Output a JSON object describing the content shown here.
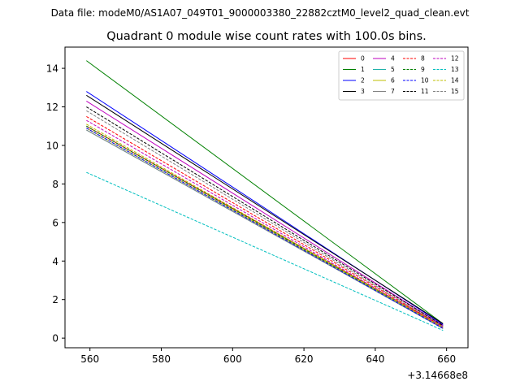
{
  "chart_data": {
    "type": "line",
    "suptitle": "Data file: modeM0/AS1A07_049T01_9000003380_22882cztM0_level2_quad_clean.evt",
    "title": "Quadrant 0 module wise count rates with 100.0s bins.",
    "xlabel": "",
    "ylabel": "",
    "x_offset_label": "+3.14668e8",
    "xlim": [
      553,
      666
    ],
    "ylim": [
      -0.5,
      15.1
    ],
    "xticks": [
      560,
      580,
      600,
      620,
      640,
      660
    ],
    "xtick_labels": [
      "560",
      "580",
      "600",
      "620",
      "640",
      "660"
    ],
    "yticks": [
      0,
      2,
      4,
      6,
      8,
      10,
      12,
      14
    ],
    "ytick_labels": [
      "0",
      "2",
      "4",
      "6",
      "8",
      "10",
      "12",
      "14"
    ],
    "legend_position": "upper right",
    "legend_columns": 4,
    "series": [
      {
        "name": "0",
        "color": "#ff0000",
        "style": "solid",
        "x": [
          559,
          659
        ],
        "y": [
          11.0,
          0.6
        ]
      },
      {
        "name": "1",
        "color": "#008000",
        "style": "solid",
        "x": [
          559,
          659
        ],
        "y": [
          14.4,
          0.75
        ]
      },
      {
        "name": "2",
        "color": "#0000ff",
        "style": "solid",
        "x": [
          559,
          659
        ],
        "y": [
          12.8,
          0.7
        ]
      },
      {
        "name": "3",
        "color": "#000000",
        "style": "solid",
        "x": [
          559,
          659
        ],
        "y": [
          12.6,
          0.75
        ]
      },
      {
        "name": "4",
        "color": "#bf00bf",
        "style": "solid",
        "x": [
          559,
          659
        ],
        "y": [
          12.3,
          0.65
        ]
      },
      {
        "name": "5",
        "color": "#20b2aa",
        "style": "solid",
        "x": [
          559,
          659
        ],
        "y": [
          10.8,
          0.5
        ]
      },
      {
        "name": "6",
        "color": "#bfbf00",
        "style": "solid",
        "x": [
          559,
          659
        ],
        "y": [
          10.9,
          0.55
        ]
      },
      {
        "name": "7",
        "color": "#808080",
        "style": "solid",
        "x": [
          559,
          659
        ],
        "y": [
          10.8,
          0.5
        ]
      },
      {
        "name": "8",
        "color": "#ff0000",
        "style": "dashed",
        "x": [
          559,
          659
        ],
        "y": [
          11.5,
          0.6
        ]
      },
      {
        "name": "9",
        "color": "#008000",
        "style": "dashed",
        "x": [
          559,
          659
        ],
        "y": [
          11.0,
          0.55
        ]
      },
      {
        "name": "10",
        "color": "#0000ff",
        "style": "dashed",
        "x": [
          559,
          659
        ],
        "y": [
          10.9,
          0.5
        ]
      },
      {
        "name": "11",
        "color": "#000000",
        "style": "dashed",
        "x": [
          559,
          659
        ],
        "y": [
          12.0,
          0.65
        ]
      },
      {
        "name": "12",
        "color": "#bf00bf",
        "style": "dashed",
        "x": [
          559,
          659
        ],
        "y": [
          11.3,
          0.55
        ]
      },
      {
        "name": "13",
        "color": "#00bfbf",
        "style": "dashed",
        "x": [
          559,
          659
        ],
        "y": [
          8.6,
          0.4
        ]
      },
      {
        "name": "14",
        "color": "#bfbf00",
        "style": "dashed",
        "x": [
          559,
          659
        ],
        "y": [
          11.1,
          0.55
        ]
      },
      {
        "name": "15",
        "color": "#808080",
        "style": "dashed",
        "x": [
          559,
          659
        ],
        "y": [
          11.8,
          0.6
        ]
      }
    ]
  }
}
